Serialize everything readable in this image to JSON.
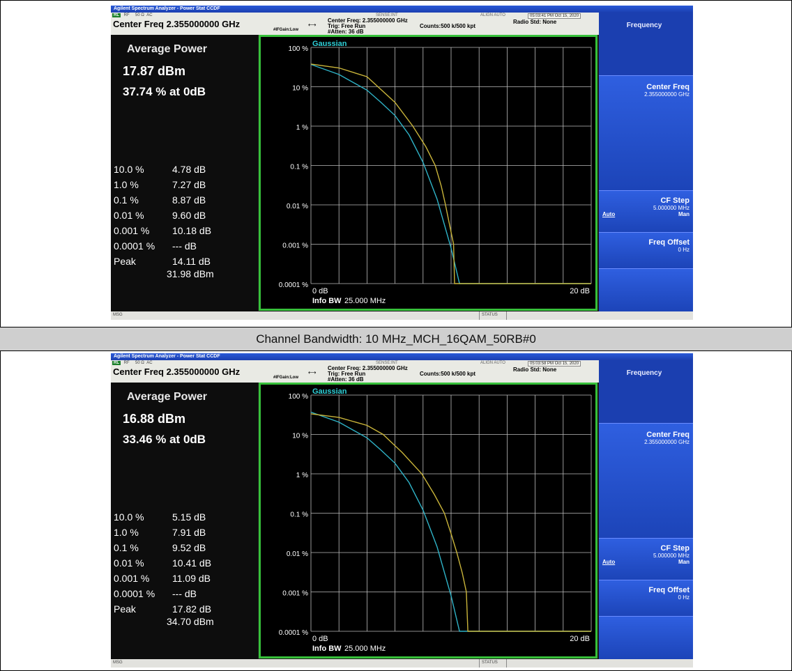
{
  "caption": "Channel Bandwidth: 10 MHz_MCH_16QAM_50RB#0",
  "colors": {
    "trace_measured": "#c9b43a",
    "trace_gaussian": "#2fb3c7",
    "graph_border": "#37c03a",
    "softkey": "#1c44b8"
  },
  "screens": [
    {
      "titlebar": "Agilent Spectrum Analyzer - Power Stat CCDF",
      "status_row": {
        "badge": "RL",
        "rf": "RF",
        "ohm": "50 Ω",
        "ac": "AC"
      },
      "sense": "SENSE:INT",
      "align": "ALIGN AUTO",
      "timestamp": "05:03:41 PM Oct 15, 2020",
      "center_freq_label": "Center Freq 2.355000000 GHz",
      "ifgain": "#IFGain:Low",
      "info_center": "Center Freq: 2.355000000 GHz",
      "info_trig": "Trig: Free Run",
      "info_atten": "#Atten: 36 dB",
      "counts": "Counts:500 k/500 kpt",
      "radio_std": "Radio Std: None",
      "softkeys": {
        "header": "Frequency",
        "center_freq": "Center Freq",
        "center_freq_value": "2.355000000 GHz",
        "cf_step": "CF Step",
        "cf_step_value": "5.000000 MHz",
        "auto": "Auto",
        "man": "Man",
        "freq_offset": "Freq Offset",
        "freq_offset_value": "0 Hz"
      },
      "avg_title": "Average Power",
      "avg_power": "17.87 dBm",
      "at_0db": "37.74 % at 0dB",
      "table": [
        {
          "p": "10.0 %",
          "v": "4.78 dB"
        },
        {
          "p": "1.0 %",
          "v": "7.27 dB"
        },
        {
          "p": "0.1 %",
          "v": "8.87 dB"
        },
        {
          "p": "0.01 %",
          "v": "9.60 dB"
        },
        {
          "p": "0.001 %",
          "v": "10.18 dB"
        },
        {
          "p": "0.0001 %",
          "v": "--- dB"
        },
        {
          "p": "Peak",
          "v": "14.11 dB"
        },
        {
          "p": "",
          "v": "31.98 dBm"
        }
      ],
      "graph": {
        "gaussian_label": "Gaussian",
        "y_ticks": [
          "100 %",
          "10 %",
          "1 %",
          "0.1 %",
          "0.01 %",
          "0.001 %",
          "0.0001 %"
        ],
        "x_left": "0 dB",
        "x_right": "20 dB",
        "info_bw_label": "Info BW",
        "info_bw_value": "25.000 MHz",
        "measured": [
          [
            0,
            37.74
          ],
          [
            2,
            30
          ],
          [
            4,
            18
          ],
          [
            4.78,
            10
          ],
          [
            6,
            4
          ],
          [
            7.27,
            1
          ],
          [
            8.2,
            0.3
          ],
          [
            8.87,
            0.1
          ],
          [
            9.3,
            0.03
          ],
          [
            9.6,
            0.01
          ],
          [
            9.9,
            0.003
          ],
          [
            10.18,
            0.001
          ],
          [
            10.25,
            0.0001
          ],
          [
            20,
            0.0001
          ]
        ],
        "gaussian": [
          [
            0,
            36.8
          ],
          [
            2,
            20.5
          ],
          [
            4,
            8.2
          ],
          [
            5,
            4
          ],
          [
            6,
            1.86
          ],
          [
            7,
            0.6
          ],
          [
            8,
            0.12
          ],
          [
            9,
            0.014
          ],
          [
            10,
            0.0008
          ],
          [
            10.6,
            0.0001
          ],
          [
            20,
            0.0001
          ]
        ]
      },
      "msg": "MSG",
      "status": "STATUS"
    },
    {
      "titlebar": "Agilent Spectrum Analyzer - Power Stat CCDF",
      "status_row": {
        "badge": "RL",
        "rf": "RF",
        "ohm": "50 Ω",
        "ac": "AC"
      },
      "sense": "SENSE:INT",
      "align": "ALIGN AUTO",
      "timestamp": "05:03:58 PM Oct 15, 2020",
      "center_freq_label": "Center Freq 2.355000000 GHz",
      "ifgain": "#IFGain:Low",
      "info_center": "Center Freq: 2.355000000 GHz",
      "info_trig": "Trig: Free Run",
      "info_atten": "#Atten: 36 dB",
      "counts": "Counts:500 k/500 kpt",
      "radio_std": "Radio Std: None",
      "softkeys": {
        "header": "Frequency",
        "center_freq": "Center Freq",
        "center_freq_value": "2.355000000 GHz",
        "cf_step": "CF Step",
        "cf_step_value": "5.000000 MHz",
        "auto": "Auto",
        "man": "Man",
        "freq_offset": "Freq Offset",
        "freq_offset_value": "0 Hz"
      },
      "avg_title": "Average Power",
      "avg_power": "16.88 dBm",
      "at_0db": "33.46 % at 0dB",
      "table": [
        {
          "p": "10.0 %",
          "v": "5.15 dB"
        },
        {
          "p": "1.0 %",
          "v": "7.91 dB"
        },
        {
          "p": "0.1 %",
          "v": "9.52 dB"
        },
        {
          "p": "0.01 %",
          "v": "10.41 dB"
        },
        {
          "p": "0.001 %",
          "v": "11.09 dB"
        },
        {
          "p": "0.0001 %",
          "v": "--- dB"
        },
        {
          "p": "Peak",
          "v": "17.82 dB"
        },
        {
          "p": "",
          "v": "34.70 dBm"
        }
      ],
      "graph": {
        "gaussian_label": "Gaussian",
        "y_ticks": [
          "100 %",
          "10 %",
          "1 %",
          "0.1 %",
          "0.01 %",
          "0.001 %",
          "0.0001 %"
        ],
        "x_left": "0 dB",
        "x_right": "20 dB",
        "info_bw_label": "Info BW",
        "info_bw_value": "25.000 MHz",
        "measured": [
          [
            0,
            33.46
          ],
          [
            2,
            27
          ],
          [
            4,
            17
          ],
          [
            5.15,
            10
          ],
          [
            6.5,
            3.5
          ],
          [
            7.91,
            1
          ],
          [
            8.8,
            0.3
          ],
          [
            9.52,
            0.1
          ],
          [
            10,
            0.03
          ],
          [
            10.41,
            0.01
          ],
          [
            10.8,
            0.003
          ],
          [
            11.09,
            0.001
          ],
          [
            11.2,
            0.0001
          ],
          [
            20,
            0.0001
          ]
        ],
        "gaussian": [
          [
            0,
            36.8
          ],
          [
            2,
            20.5
          ],
          [
            4,
            8.2
          ],
          [
            5,
            4
          ],
          [
            6,
            1.86
          ],
          [
            7,
            0.6
          ],
          [
            8,
            0.12
          ],
          [
            9,
            0.014
          ],
          [
            10,
            0.0008
          ],
          [
            10.6,
            0.0001
          ],
          [
            20,
            0.0001
          ]
        ]
      },
      "msg": "MSG",
      "status": "STATUS"
    }
  ]
}
